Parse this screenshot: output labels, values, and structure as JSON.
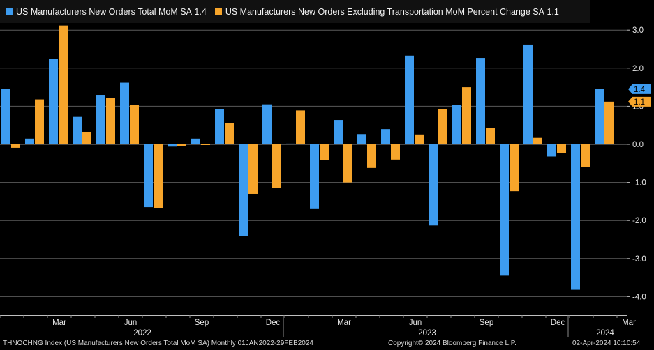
{
  "chart_data": {
    "type": "bar",
    "title": "",
    "legend": [
      {
        "name": "US Manufacturers New Orders Total MoM SA",
        "last": "1.4",
        "color": "#3d9cf0"
      },
      {
        "name": "US Manufacturers New Orders Excluding Transportation MoM Percent Change SA",
        "last": "1.1",
        "color": "#f7a52b"
      }
    ],
    "categories": [
      "Jan 2022",
      "Feb 2022",
      "Mar 2022",
      "Apr 2022",
      "May 2022",
      "Jun 2022",
      "Jul 2022",
      "Aug 2022",
      "Sep 2022",
      "Oct 2022",
      "Nov 2022",
      "Dec 2022",
      "Jan 2023",
      "Feb 2023",
      "Mar 2023",
      "Apr 2023",
      "May 2023",
      "Jun 2023",
      "Jul 2023",
      "Aug 2023",
      "Sep 2023",
      "Oct 2023",
      "Nov 2023",
      "Dec 2023",
      "Jan 2024",
      "Feb 2024"
    ],
    "series": [
      {
        "name": "US Manufacturers New Orders Total MoM SA",
        "values": [
          1.45,
          0.15,
          2.25,
          0.72,
          1.3,
          1.62,
          -1.65,
          -0.06,
          0.15,
          0.93,
          -2.4,
          1.05,
          0.02,
          -1.7,
          0.64,
          0.27,
          0.4,
          2.33,
          -2.13,
          1.04,
          2.27,
          -3.45,
          2.62,
          -0.32,
          -3.82,
          1.45
        ]
      },
      {
        "name": "US Manufacturers New Orders Excluding Transportation MoM Percent Change SA",
        "values": [
          -0.09,
          1.18,
          3.12,
          0.33,
          1.22,
          1.03,
          -1.68,
          -0.05,
          0.0,
          0.55,
          -1.3,
          -1.15,
          0.89,
          -0.42,
          -1.0,
          -0.62,
          -0.4,
          0.26,
          0.92,
          1.5,
          0.43,
          -1.23,
          0.17,
          -0.23,
          -0.6,
          1.12
        ]
      }
    ],
    "ylim": [
      -4.5,
      3.75
    ],
    "yticks": [
      3.0,
      2.0,
      1.0,
      0.0,
      -1.0,
      -2.0,
      -3.0,
      -4.0
    ],
    "ytick_labels": [
      "3.0",
      "2.0",
      "1.0",
      "0.0",
      "-1.0",
      "-2.0",
      "-3.0",
      "-4.0"
    ],
    "month_ticks": [
      {
        "label": "Mar",
        "index": 2
      },
      {
        "label": "Jun",
        "index": 5
      },
      {
        "label": "Sep",
        "index": 8
      },
      {
        "label": "Dec",
        "index": 11
      },
      {
        "label": "Mar",
        "index": 14
      },
      {
        "label": "Jun",
        "index": 17
      },
      {
        "label": "Sep",
        "index": 20
      },
      {
        "label": "Dec",
        "index": 23
      },
      {
        "label": "Mar",
        "index": 26
      }
    ],
    "year_labels": [
      {
        "label": "2022",
        "center_index": 5.5
      },
      {
        "label": "2023",
        "center_index": 17.5
      },
      {
        "label": "2024",
        "center_index": 25
      }
    ],
    "last_value_tags": [
      {
        "text": "1.4",
        "value": 1.45,
        "color": "#3d9cf0"
      },
      {
        "text": "1.1",
        "value": 1.12,
        "color": "#f7a52b"
      }
    ],
    "grid": true
  },
  "footer": {
    "left": "THNOCHNG Index (US Manufacturers New Orders Total MoM SA)  Monthly 01JAN2022-29FEB2024",
    "center": "Copyright© 2024 Bloomberg Finance L.P.",
    "right": "02-Apr-2024 10:10:54"
  }
}
